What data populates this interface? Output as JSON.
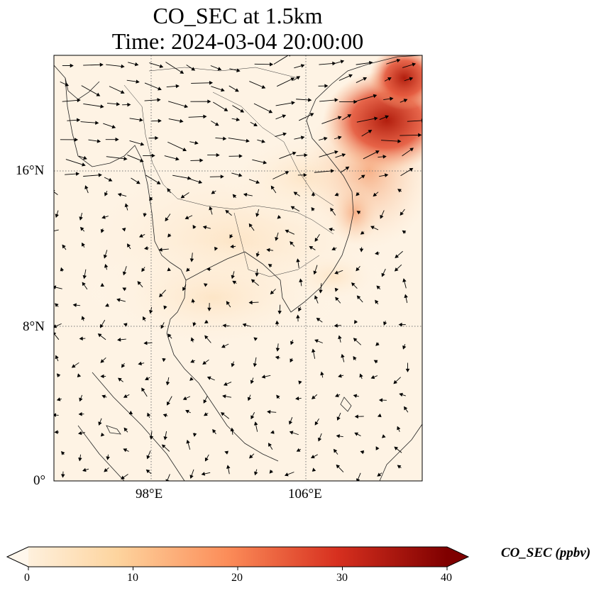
{
  "title": {
    "line1": "CO_SEC at 1.5km",
    "line2": "Time: 2024-03-04 20:00:00"
  },
  "map": {
    "type": "filled-field-with-wind-vectors",
    "projection": "PlateCarree",
    "lon_range": [
      93,
      112
    ],
    "lat_range": [
      0,
      22
    ],
    "gridlines": "dotted gray",
    "lat_tick_labels": [
      "16°N",
      "8°N",
      "0°"
    ],
    "lon_tick_labels": [
      "98°E",
      "106°E"
    ],
    "high_concentration_region": "north-east (Gulf of Tonkin / southern China / Vietnam coast)",
    "wind_vectors": "black arrows"
  },
  "colorbar": {
    "label": "CO_SEC (ppbv)",
    "colormap": "OrRd",
    "ticks": [
      "0",
      "10",
      "20",
      "30",
      "40"
    ],
    "range": [
      0,
      40
    ],
    "extend": "both",
    "colors": [
      "#fff7ec",
      "#fdd49e",
      "#fc8d59",
      "#d7301f",
      "#7f0000"
    ]
  }
}
